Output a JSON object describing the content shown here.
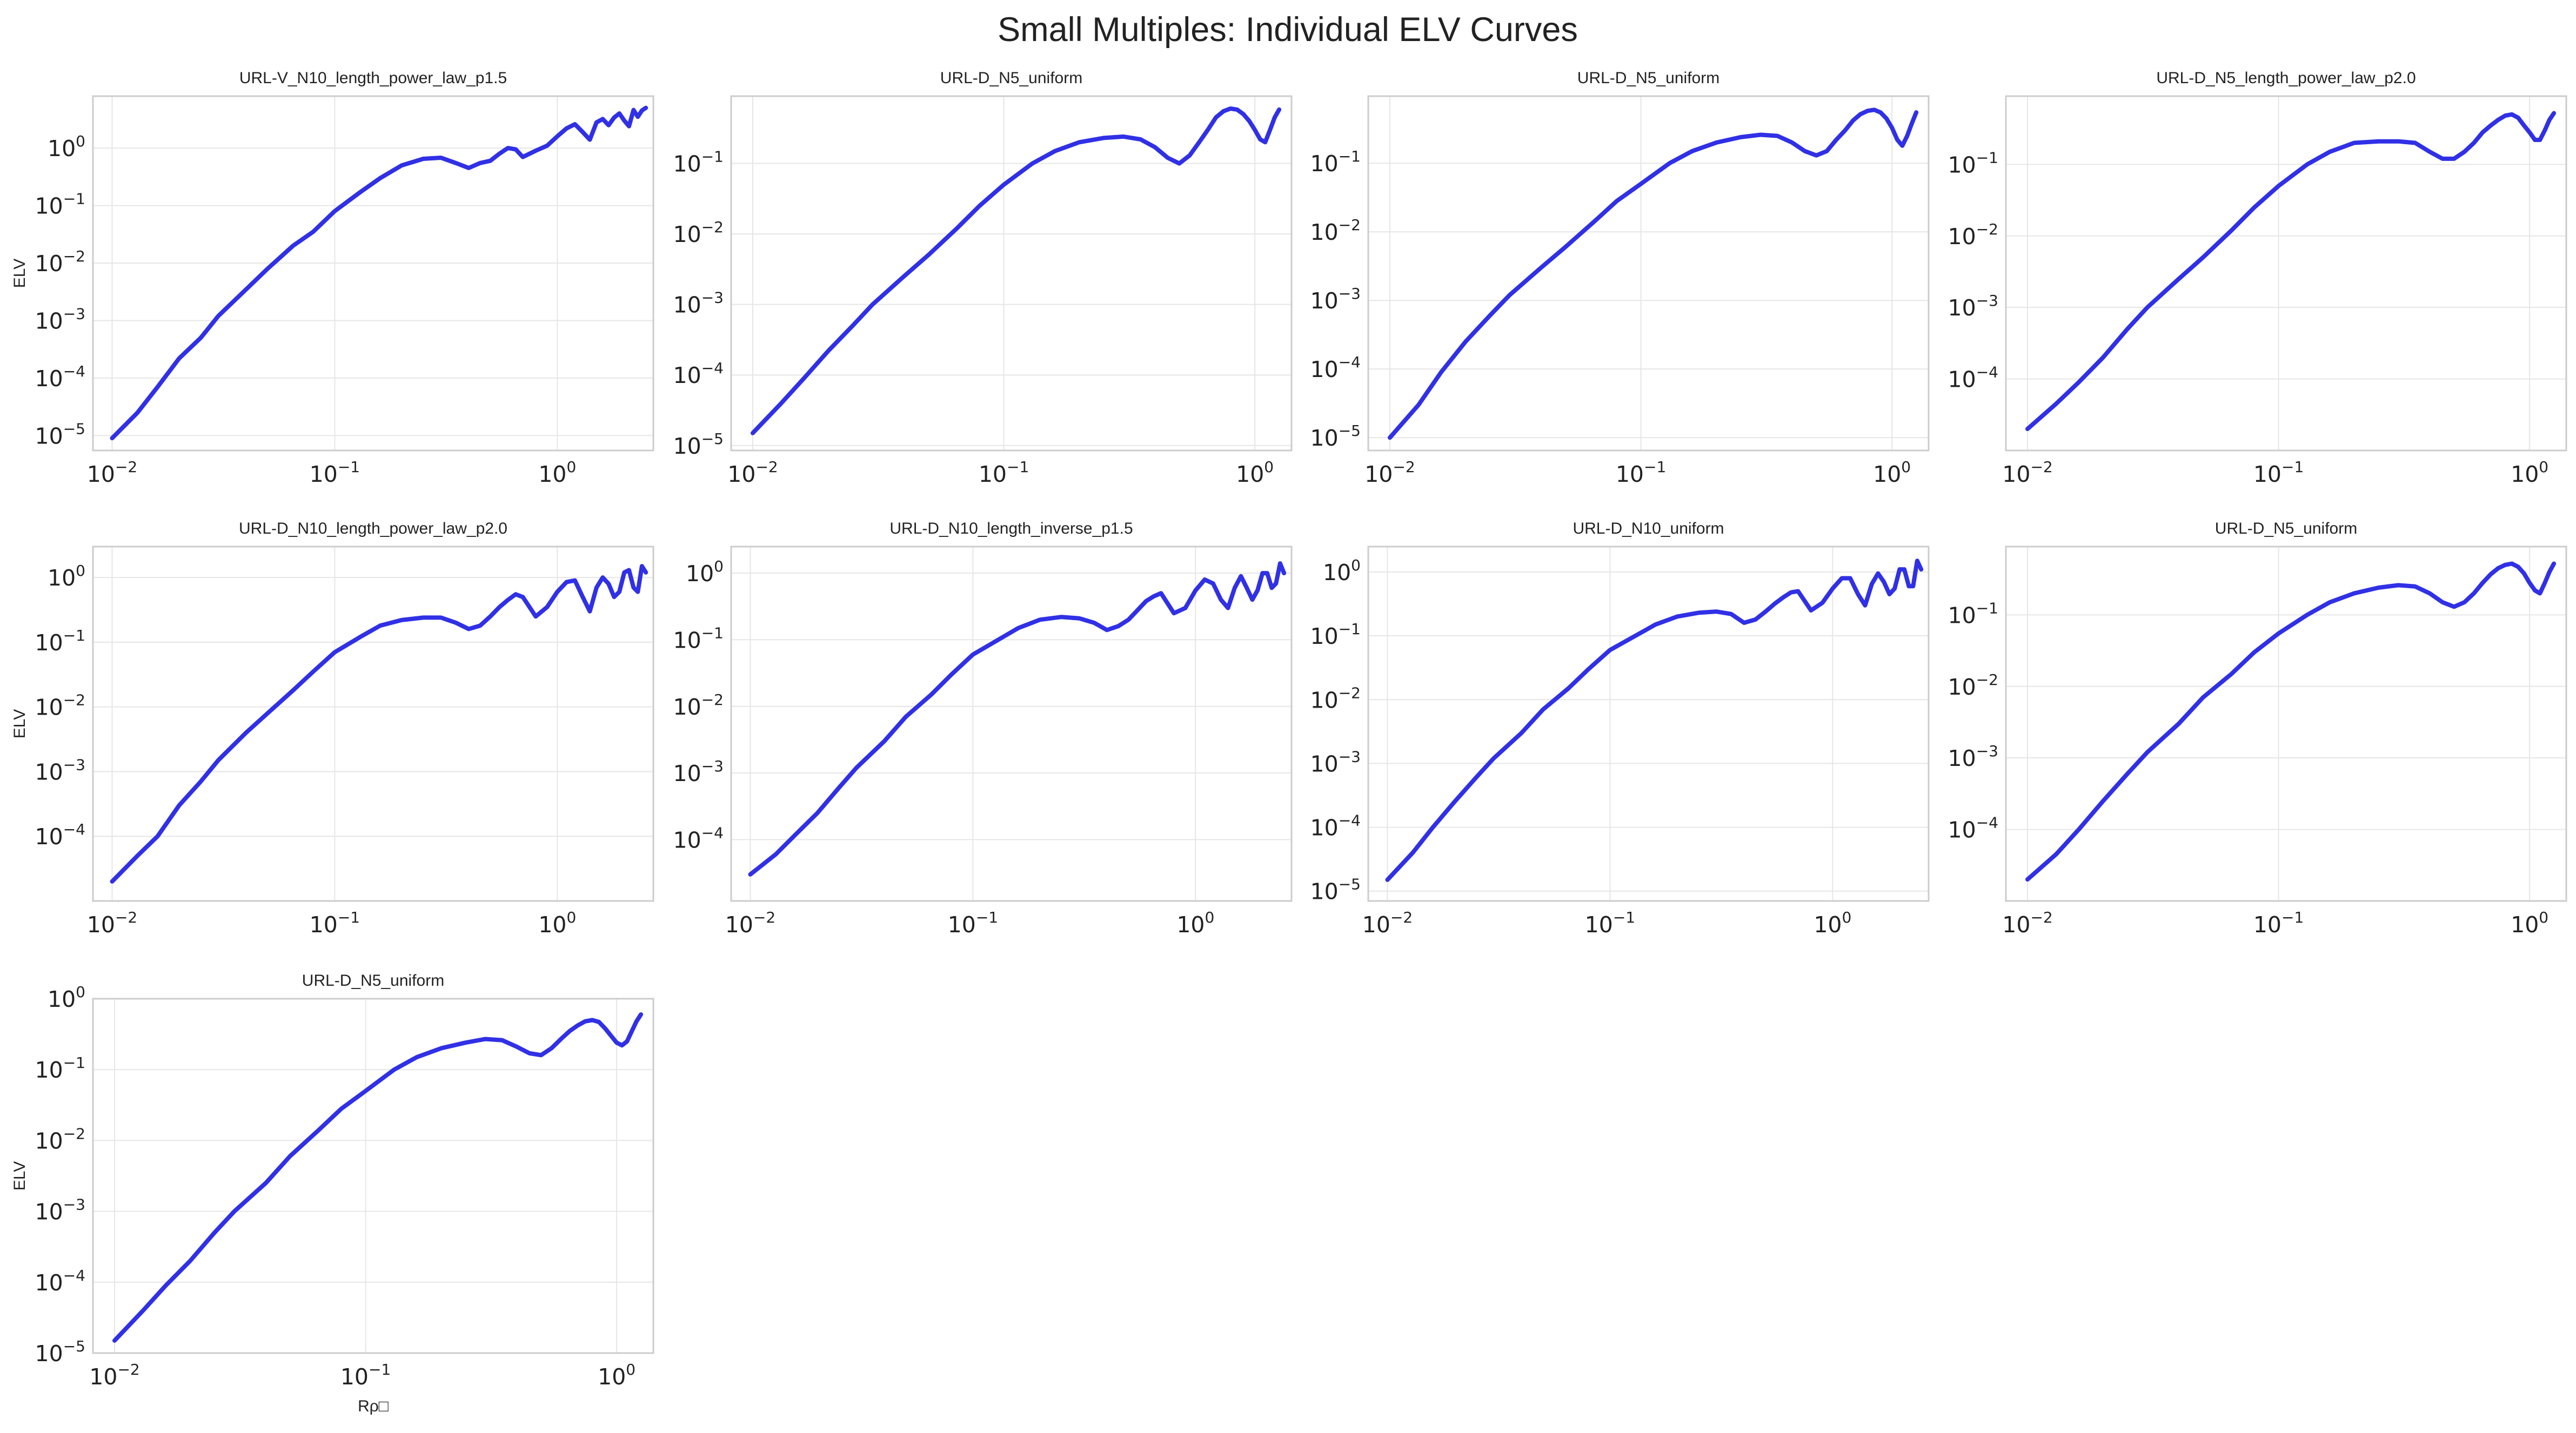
{
  "figure": {
    "title": "Small Multiples: Individual ELV Curves"
  },
  "colors": {
    "curve": "#3030e6",
    "frame": "#cccccc",
    "grid": "#e6e6e6",
    "text": "#222222"
  },
  "chart_data": [
    {
      "type": "line",
      "title": "URL-V_N10_length_power_law_p1.5",
      "ylabel": "ELV",
      "xlabel": "",
      "xscale": "log",
      "yscale": "log",
      "xlim": [
        0.0082,
        2.7
      ],
      "ylim": [
        5.5e-06,
        8.0
      ],
      "xticks": [
        -2,
        -1,
        0
      ],
      "yticks": [
        -5,
        -4,
        -3,
        -2,
        -1,
        0
      ],
      "grid": true,
      "series": [
        {
          "x": [
            0.01,
            0.013,
            0.016,
            0.02,
            0.025,
            0.03,
            0.04,
            0.05,
            0.065,
            0.08,
            0.1,
            0.13,
            0.16,
            0.2,
            0.25,
            0.3,
            0.35,
            0.4,
            0.45,
            0.5,
            0.55,
            0.6,
            0.65,
            0.7,
            0.8,
            0.9,
            1.0,
            1.1,
            1.2,
            1.3,
            1.4,
            1.5,
            1.6,
            1.7,
            1.8,
            1.9,
            2.0,
            2.1,
            2.2,
            2.3,
            2.4,
            2.5
          ],
          "y": [
            9e-06,
            2.5e-05,
            7e-05,
            0.00022,
            0.0005,
            0.0012,
            0.0035,
            0.008,
            0.02,
            0.035,
            0.08,
            0.17,
            0.3,
            0.5,
            0.65,
            0.68,
            0.55,
            0.45,
            0.55,
            0.6,
            0.8,
            1.0,
            0.95,
            0.7,
            0.9,
            1.1,
            1.6,
            2.2,
            2.6,
            1.9,
            1.4,
            2.8,
            3.2,
            2.5,
            3.4,
            4.0,
            3.0,
            2.4,
            4.6,
            3.5,
            4.5,
            5.0
          ]
        }
      ]
    },
    {
      "type": "line",
      "title": "URL-D_N5_uniform",
      "ylabel": "",
      "xlabel": "",
      "xscale": "log",
      "yscale": "log",
      "xlim": [
        0.0082,
        1.4
      ],
      "ylim": [
        8.5e-06,
        0.9
      ],
      "xticks": [
        -2,
        -1,
        0
      ],
      "yticks": [
        -5,
        -4,
        -3,
        -2,
        -1
      ],
      "grid": true,
      "series": [
        {
          "x": [
            0.01,
            0.013,
            0.016,
            0.02,
            0.025,
            0.03,
            0.04,
            0.05,
            0.065,
            0.08,
            0.1,
            0.13,
            0.16,
            0.2,
            0.25,
            0.3,
            0.35,
            0.4,
            0.45,
            0.5,
            0.55,
            0.6,
            0.65,
            0.7,
            0.75,
            0.8,
            0.85,
            0.9,
            0.95,
            1.0,
            1.05,
            1.1,
            1.15,
            1.2,
            1.25
          ],
          "y": [
            1.5e-05,
            4e-05,
            9e-05,
            0.00022,
            0.0005,
            0.001,
            0.0025,
            0.005,
            0.012,
            0.025,
            0.05,
            0.1,
            0.15,
            0.2,
            0.23,
            0.24,
            0.22,
            0.17,
            0.12,
            0.1,
            0.13,
            0.2,
            0.3,
            0.45,
            0.55,
            0.6,
            0.58,
            0.5,
            0.4,
            0.3,
            0.22,
            0.2,
            0.3,
            0.45,
            0.58
          ]
        }
      ]
    },
    {
      "type": "line",
      "title": "URL-D_N5_uniform",
      "ylabel": "",
      "xlabel": "",
      "xscale": "log",
      "yscale": "log",
      "xlim": [
        0.0082,
        1.4
      ],
      "ylim": [
        6.5e-06,
        0.95
      ],
      "xticks": [
        -2,
        -1,
        0
      ],
      "yticks": [
        -5,
        -4,
        -3,
        -2,
        -1
      ],
      "grid": true,
      "series": [
        {
          "x": [
            0.01,
            0.013,
            0.016,
            0.02,
            0.025,
            0.03,
            0.04,
            0.05,
            0.065,
            0.08,
            0.1,
            0.13,
            0.16,
            0.2,
            0.25,
            0.3,
            0.35,
            0.4,
            0.45,
            0.5,
            0.55,
            0.6,
            0.65,
            0.7,
            0.75,
            0.8,
            0.85,
            0.9,
            0.95,
            1.0,
            1.05,
            1.1,
            1.15,
            1.2,
            1.25
          ],
          "y": [
            1e-05,
            3e-05,
            9e-05,
            0.00025,
            0.0006,
            0.0012,
            0.003,
            0.006,
            0.014,
            0.028,
            0.05,
            0.1,
            0.15,
            0.2,
            0.24,
            0.26,
            0.25,
            0.2,
            0.15,
            0.13,
            0.15,
            0.22,
            0.3,
            0.42,
            0.52,
            0.58,
            0.6,
            0.55,
            0.45,
            0.33,
            0.22,
            0.18,
            0.25,
            0.38,
            0.55
          ]
        }
      ]
    },
    {
      "type": "line",
      "title": "URL-D_N5_length_power_law_p2.0",
      "ylabel": "",
      "xlabel": "",
      "xscale": "log",
      "yscale": "log",
      "xlim": [
        0.0082,
        1.4
      ],
      "ylim": [
        1e-05,
        0.9
      ],
      "xticks": [
        -2,
        -1,
        0
      ],
      "yticks": [
        -4,
        -3,
        -2,
        -1
      ],
      "grid": true,
      "series": [
        {
          "x": [
            0.01,
            0.013,
            0.016,
            0.02,
            0.025,
            0.03,
            0.04,
            0.05,
            0.065,
            0.08,
            0.1,
            0.13,
            0.16,
            0.2,
            0.25,
            0.3,
            0.35,
            0.4,
            0.45,
            0.5,
            0.55,
            0.6,
            0.65,
            0.7,
            0.75,
            0.8,
            0.85,
            0.9,
            0.95,
            1.0,
            1.05,
            1.1,
            1.15,
            1.2,
            1.25
          ],
          "y": [
            2e-05,
            4.5e-05,
            9e-05,
            0.0002,
            0.0005,
            0.001,
            0.0025,
            0.005,
            0.012,
            0.025,
            0.05,
            0.1,
            0.15,
            0.2,
            0.21,
            0.21,
            0.2,
            0.15,
            0.12,
            0.12,
            0.15,
            0.2,
            0.28,
            0.35,
            0.42,
            0.48,
            0.5,
            0.45,
            0.35,
            0.28,
            0.22,
            0.22,
            0.3,
            0.42,
            0.52
          ]
        }
      ]
    },
    {
      "type": "line",
      "title": "URL-D_N10_length_power_law_p2.0",
      "ylabel": "ELV",
      "xlabel": "",
      "xscale": "log",
      "yscale": "log",
      "xlim": [
        0.0082,
        2.7
      ],
      "ylim": [
        1e-05,
        3.0
      ],
      "xticks": [
        -2,
        -1,
        0
      ],
      "yticks": [
        -4,
        -3,
        -2,
        -1,
        0
      ],
      "grid": true,
      "series": [
        {
          "x": [
            0.01,
            0.013,
            0.016,
            0.02,
            0.025,
            0.03,
            0.04,
            0.05,
            0.065,
            0.08,
            0.1,
            0.13,
            0.16,
            0.2,
            0.25,
            0.3,
            0.35,
            0.4,
            0.45,
            0.5,
            0.55,
            0.6,
            0.65,
            0.7,
            0.8,
            0.9,
            1.0,
            1.1,
            1.2,
            1.3,
            1.4,
            1.5,
            1.6,
            1.7,
            1.8,
            1.9,
            2.0,
            2.1,
            2.2,
            2.3,
            2.4,
            2.5
          ],
          "y": [
            2e-05,
            5e-05,
            0.0001,
            0.0003,
            0.0007,
            0.0015,
            0.004,
            0.008,
            0.018,
            0.035,
            0.07,
            0.12,
            0.18,
            0.22,
            0.24,
            0.24,
            0.2,
            0.16,
            0.18,
            0.25,
            0.35,
            0.45,
            0.55,
            0.5,
            0.25,
            0.35,
            0.6,
            0.85,
            0.9,
            0.5,
            0.3,
            0.7,
            1.0,
            0.8,
            0.5,
            0.6,
            1.2,
            1.3,
            0.7,
            0.6,
            1.5,
            1.2
          ]
        }
      ]
    },
    {
      "type": "line",
      "title": "URL-D_N10_length_inverse_p1.5",
      "ylabel": "",
      "xlabel": "",
      "xscale": "log",
      "yscale": "log",
      "xlim": [
        0.0082,
        2.7
      ],
      "ylim": [
        1.2e-05,
        2.5
      ],
      "xticks": [
        -2,
        -1,
        0
      ],
      "yticks": [
        -4,
        -3,
        -2,
        -1,
        0
      ],
      "grid": true,
      "series": [
        {
          "x": [
            0.01,
            0.013,
            0.016,
            0.02,
            0.025,
            0.03,
            0.04,
            0.05,
            0.065,
            0.08,
            0.1,
            0.13,
            0.16,
            0.2,
            0.25,
            0.3,
            0.35,
            0.4,
            0.45,
            0.5,
            0.55,
            0.6,
            0.65,
            0.7,
            0.8,
            0.9,
            1.0,
            1.1,
            1.2,
            1.3,
            1.4,
            1.5,
            1.6,
            1.7,
            1.8,
            1.9,
            2.0,
            2.1,
            2.2,
            2.3,
            2.4,
            2.5
          ],
          "y": [
            3e-05,
            6e-05,
            0.00012,
            0.00025,
            0.0006,
            0.0012,
            0.003,
            0.007,
            0.015,
            0.03,
            0.06,
            0.1,
            0.15,
            0.2,
            0.22,
            0.21,
            0.18,
            0.14,
            0.16,
            0.2,
            0.28,
            0.38,
            0.45,
            0.5,
            0.25,
            0.3,
            0.55,
            0.8,
            0.7,
            0.4,
            0.3,
            0.6,
            0.9,
            0.6,
            0.4,
            0.55,
            1.0,
            1.0,
            0.6,
            0.7,
            1.4,
            1.0
          ]
        }
      ]
    },
    {
      "type": "line",
      "title": "URL-D_N10_uniform",
      "ylabel": "",
      "xlabel": "",
      "xscale": "log",
      "yscale": "log",
      "xlim": [
        0.0082,
        2.7
      ],
      "ylim": [
        7e-06,
        2.5
      ],
      "xticks": [
        -2,
        -1,
        0
      ],
      "yticks": [
        -5,
        -4,
        -3,
        -2,
        -1,
        0
      ],
      "grid": true,
      "series": [
        {
          "x": [
            0.01,
            0.013,
            0.016,
            0.02,
            0.025,
            0.03,
            0.04,
            0.05,
            0.065,
            0.08,
            0.1,
            0.13,
            0.16,
            0.2,
            0.25,
            0.3,
            0.35,
            0.4,
            0.45,
            0.5,
            0.55,
            0.6,
            0.65,
            0.7,
            0.8,
            0.9,
            1.0,
            1.1,
            1.2,
            1.3,
            1.4,
            1.5,
            1.6,
            1.7,
            1.8,
            1.9,
            2.0,
            2.1,
            2.2,
            2.3,
            2.4,
            2.5
          ],
          "y": [
            1.5e-05,
            4e-05,
            0.0001,
            0.00025,
            0.0006,
            0.0012,
            0.003,
            0.007,
            0.015,
            0.03,
            0.06,
            0.1,
            0.15,
            0.2,
            0.23,
            0.24,
            0.22,
            0.16,
            0.18,
            0.24,
            0.32,
            0.4,
            0.48,
            0.5,
            0.25,
            0.33,
            0.55,
            0.8,
            0.8,
            0.45,
            0.3,
            0.65,
            0.95,
            0.7,
            0.45,
            0.55,
            1.1,
            1.1,
            0.6,
            0.6,
            1.5,
            1.1
          ]
        }
      ]
    },
    {
      "type": "line",
      "title": "URL-D_N5_uniform",
      "ylabel": "",
      "xlabel": "",
      "xscale": "log",
      "yscale": "log",
      "xlim": [
        0.0082,
        1.4
      ],
      "ylim": [
        1e-05,
        0.9
      ],
      "xticks": [
        -2,
        -1,
        0
      ],
      "yticks": [
        -4,
        -3,
        -2,
        -1
      ],
      "grid": true,
      "series": [
        {
          "x": [
            0.01,
            0.013,
            0.016,
            0.02,
            0.025,
            0.03,
            0.04,
            0.05,
            0.065,
            0.08,
            0.1,
            0.13,
            0.16,
            0.2,
            0.25,
            0.3,
            0.35,
            0.4,
            0.45,
            0.5,
            0.55,
            0.6,
            0.65,
            0.7,
            0.75,
            0.8,
            0.85,
            0.9,
            0.95,
            1.0,
            1.05,
            1.1,
            1.15,
            1.2,
            1.25
          ],
          "y": [
            2e-05,
            4.5e-05,
            0.0001,
            0.00025,
            0.0006,
            0.0012,
            0.003,
            0.007,
            0.015,
            0.03,
            0.055,
            0.1,
            0.15,
            0.2,
            0.24,
            0.26,
            0.25,
            0.2,
            0.15,
            0.13,
            0.15,
            0.2,
            0.28,
            0.37,
            0.45,
            0.5,
            0.52,
            0.47,
            0.38,
            0.28,
            0.22,
            0.2,
            0.28,
            0.4,
            0.52
          ]
        }
      ]
    },
    {
      "type": "line",
      "title": "URL-D_N5_uniform",
      "ylabel": "ELV",
      "xlabel": "Rρ□",
      "xscale": "log",
      "yscale": "log",
      "xlim": [
        0.0082,
        1.4
      ],
      "ylim": [
        1e-05,
        1.0
      ],
      "xticks": [
        -2,
        -1,
        0
      ],
      "yticks": [
        -5,
        -4,
        -3,
        -2,
        -1,
        0
      ],
      "grid": true,
      "series": [
        {
          "x": [
            0.01,
            0.013,
            0.016,
            0.02,
            0.025,
            0.03,
            0.04,
            0.05,
            0.065,
            0.08,
            0.1,
            0.13,
            0.16,
            0.2,
            0.25,
            0.3,
            0.35,
            0.4,
            0.45,
            0.5,
            0.55,
            0.6,
            0.65,
            0.7,
            0.75,
            0.8,
            0.85,
            0.9,
            0.95,
            1.0,
            1.05,
            1.1,
            1.15,
            1.2,
            1.25
          ],
          "y": [
            1.5e-05,
            4e-05,
            9e-05,
            0.0002,
            0.0005,
            0.001,
            0.0025,
            0.006,
            0.014,
            0.028,
            0.05,
            0.1,
            0.15,
            0.2,
            0.24,
            0.27,
            0.26,
            0.21,
            0.17,
            0.16,
            0.2,
            0.27,
            0.35,
            0.42,
            0.48,
            0.5,
            0.47,
            0.38,
            0.3,
            0.24,
            0.22,
            0.25,
            0.35,
            0.48,
            0.6
          ]
        }
      ]
    }
  ]
}
